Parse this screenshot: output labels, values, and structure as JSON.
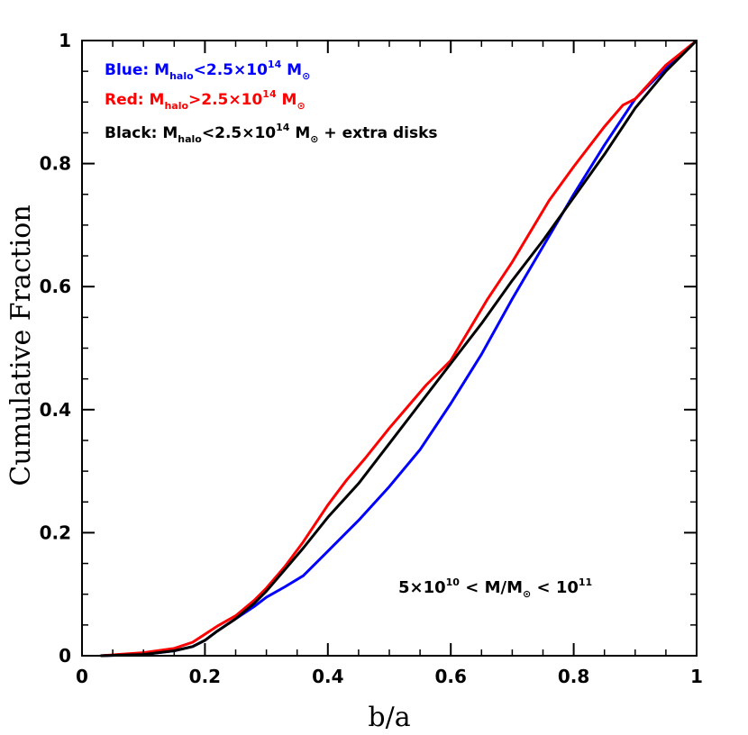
{
  "chart_data": {
    "type": "line",
    "xlabel": "b/a",
    "ylabel": "Cumulative Fraction",
    "xlim": [
      0,
      1
    ],
    "ylim": [
      0,
      1
    ],
    "x_ticks": [
      "0",
      "0.2",
      "0.4",
      "0.6",
      "0.8",
      "1"
    ],
    "y_ticks": [
      "0",
      "0.2",
      "0.4",
      "0.6",
      "0.8",
      "1"
    ],
    "grid": false,
    "legend_position": "top-left",
    "legend": [
      {
        "prefix": "Blue:",
        "m": "M",
        "sub": "halo",
        "rel": "<2.5×10",
        "exp": "14",
        "unit_m": " M",
        "unit_sub": "⊙",
        "suffix": "",
        "color": "#0000ff"
      },
      {
        "prefix": "Red:",
        "m": "M",
        "sub": "halo",
        "rel": ">2.5×10",
        "exp": "14",
        "unit_m": " M",
        "unit_sub": "⊙",
        "suffix": "",
        "color": "#ff0000"
      },
      {
        "prefix": "Black:",
        "m": "M",
        "sub": "halo",
        "rel": "<2.5×10",
        "exp": "14",
        "unit_m": " M",
        "unit_sub": "⊙",
        "suffix": " + extra disks",
        "color": "#000000"
      }
    ],
    "annotation": {
      "a": "5×10",
      "a_exp": "10",
      "b": " < M/M",
      "b_sub": "⊙",
      "c": " < 10",
      "c_exp": "11"
    },
    "series": [
      {
        "color": "#0000ff",
        "x": [
          0.03,
          0.1,
          0.15,
          0.18,
          0.2,
          0.22,
          0.25,
          0.28,
          0.3,
          0.33,
          0.36,
          0.4,
          0.45,
          0.5,
          0.55,
          0.6,
          0.65,
          0.7,
          0.75,
          0.8,
          0.85,
          0.9,
          0.95,
          1.0
        ],
        "y": [
          0.0,
          0.002,
          0.008,
          0.015,
          0.025,
          0.04,
          0.06,
          0.08,
          0.095,
          0.112,
          0.13,
          0.17,
          0.22,
          0.275,
          0.335,
          0.41,
          0.49,
          0.58,
          0.665,
          0.75,
          0.83,
          0.905,
          0.955,
          1.0
        ]
      },
      {
        "color": "#ff0000",
        "x": [
          0.03,
          0.1,
          0.15,
          0.18,
          0.2,
          0.22,
          0.25,
          0.28,
          0.3,
          0.33,
          0.36,
          0.4,
          0.43,
          0.46,
          0.5,
          0.53,
          0.56,
          0.6,
          0.63,
          0.66,
          0.7,
          0.73,
          0.76,
          0.8,
          0.85,
          0.88,
          0.9,
          0.95,
          1.0
        ],
        "y": [
          0.0,
          0.005,
          0.012,
          0.022,
          0.035,
          0.048,
          0.065,
          0.09,
          0.11,
          0.145,
          0.185,
          0.245,
          0.285,
          0.32,
          0.37,
          0.405,
          0.44,
          0.48,
          0.53,
          0.58,
          0.64,
          0.69,
          0.74,
          0.795,
          0.86,
          0.895,
          0.905,
          0.96,
          1.0
        ]
      },
      {
        "color": "#000000",
        "x": [
          0.03,
          0.1,
          0.15,
          0.18,
          0.2,
          0.22,
          0.25,
          0.28,
          0.3,
          0.33,
          0.36,
          0.4,
          0.45,
          0.5,
          0.55,
          0.6,
          0.65,
          0.7,
          0.75,
          0.8,
          0.85,
          0.9,
          0.95,
          1.0
        ],
        "y": [
          0.0,
          0.002,
          0.008,
          0.015,
          0.025,
          0.04,
          0.06,
          0.085,
          0.105,
          0.14,
          0.175,
          0.225,
          0.28,
          0.345,
          0.41,
          0.475,
          0.54,
          0.61,
          0.675,
          0.745,
          0.815,
          0.89,
          0.95,
          1.0
        ]
      }
    ]
  }
}
